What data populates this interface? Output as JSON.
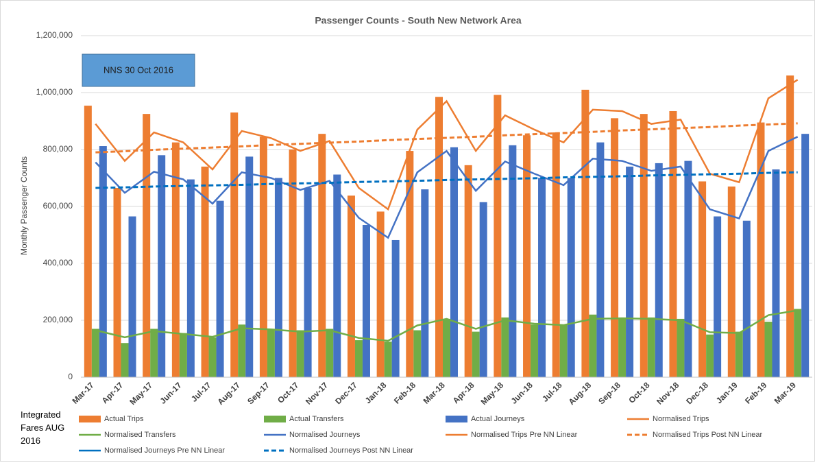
{
  "chart_data": {
    "type": "bar",
    "title": "Passenger Counts - South New Network Area",
    "y_label": "Monthly Passenger Counts",
    "annotation": "NNS 30 Oct 2016",
    "note": "Integrated Fares AUG 2016",
    "categories": [
      "Mar-17",
      "Apr-17",
      "May-17",
      "Jun-17",
      "Jul-17",
      "Aug-17",
      "Sep-17",
      "Oct-17",
      "Nov-17",
      "Dec-17",
      "Jan-18",
      "Feb-18",
      "Mar-18",
      "Apr-18",
      "May-18",
      "Jun-18",
      "Jul-18",
      "Aug-18",
      "Sep-18",
      "Oct-18",
      "Nov-18",
      "Dec-18",
      "Jan-19",
      "Feb-19",
      "Mar-19"
    ],
    "ylim": [
      0,
      1200000
    ],
    "yticks": [
      0,
      {
        "value": 200000,
        "label": "200,000"
      },
      {
        "value": 400000,
        "label": "400,000"
      },
      {
        "value": 600000,
        "label": "600,000"
      },
      {
        "value": 800000,
        "label": "800,000"
      },
      {
        "value": 1000000,
        "label": "1,000,000"
      },
      {
        "value": 1200000,
        "label": "1,200,000"
      }
    ],
    "grid": true,
    "series": [
      {
        "name": "Actual Trips",
        "color": "#ed7d31",
        "mark": "bar",
        "slot": 0,
        "values": [
          954000,
          665000,
          925000,
          825000,
          740000,
          930000,
          845000,
          800000,
          855000,
          638000,
          582000,
          795000,
          985000,
          745000,
          992000,
          850000,
          860000,
          1010000,
          910000,
          925000,
          935000,
          688000,
          670000,
          895000,
          1060000
        ]
      },
      {
        "name": "Actual Transfers",
        "color": "#70ad47",
        "mark": "bar",
        "slot": 1,
        "values": [
          170000,
          120000,
          170000,
          155000,
          140000,
          185000,
          170000,
          165000,
          170000,
          130000,
          125000,
          165000,
          205000,
          160000,
          210000,
          185000,
          185000,
          220000,
          210000,
          210000,
          205000,
          150000,
          160000,
          195000,
          240000
        ]
      },
      {
        "name": "Actual Journeys",
        "color": "#4472c4",
        "mark": "bar",
        "slot": 2,
        "values": [
          812000,
          565000,
          780000,
          695000,
          620000,
          775000,
          700000,
          665000,
          712000,
          535000,
          482000,
          660000,
          808000,
          615000,
          815000,
          700000,
          700000,
          825000,
          740000,
          752000,
          760000,
          565000,
          550000,
          730000,
          855000
        ]
      },
      {
        "name": "Normalised Trips",
        "color": "#ed7d31",
        "mark": "line",
        "dash": false,
        "values": [
          890000,
          760000,
          860000,
          825000,
          730000,
          865000,
          840000,
          795000,
          830000,
          665000,
          590000,
          870000,
          970000,
          795000,
          920000,
          870000,
          825000,
          940000,
          935000,
          890000,
          905000,
          715000,
          685000,
          980000,
          1045000
        ]
      },
      {
        "name": "Normalised Transfers",
        "color": "#70ad47",
        "mark": "line",
        "dash": false,
        "values": [
          165000,
          140000,
          162000,
          152000,
          142000,
          172000,
          168000,
          160000,
          165000,
          138000,
          128000,
          182000,
          205000,
          170000,
          200000,
          188000,
          183000,
          205000,
          207000,
          205000,
          200000,
          158000,
          155000,
          218000,
          235000
        ]
      },
      {
        "name": "Normalised Journeys",
        "color": "#4472c4",
        "mark": "line",
        "dash": false,
        "values": [
          755000,
          648000,
          722000,
          695000,
          610000,
          720000,
          700000,
          658000,
          690000,
          560000,
          490000,
          720000,
          795000,
          655000,
          758000,
          715000,
          675000,
          768000,
          760000,
          725000,
          740000,
          590000,
          558000,
          795000,
          845000
        ]
      },
      {
        "name": "Normalised Trips Pre NN Linear",
        "color": "#ed7d31",
        "mark": "line",
        "dash": false,
        "values": [
          null,
          null,
          null,
          null,
          null,
          null,
          null,
          null,
          null,
          null,
          null,
          null,
          null,
          null,
          null,
          null,
          null,
          null,
          null,
          null,
          null,
          null,
          null,
          null,
          null
        ]
      },
      {
        "name": "Normalised Trips Post NN Linear",
        "color": "#ed7d31",
        "mark": "line",
        "dash": true,
        "values": [
          790000,
          794000,
          799000,
          803000,
          807000,
          811000,
          816000,
          820000,
          824000,
          828000,
          833000,
          837000,
          841000,
          845000,
          850000,
          854000,
          858000,
          862000,
          867000,
          871000,
          875000,
          879000,
          884000,
          888000,
          892000
        ]
      },
      {
        "name": "Normalised Journeys Pre NN Linear",
        "color": "#0070c0",
        "mark": "line",
        "dash": false,
        "values": [
          null,
          null,
          null,
          null,
          null,
          null,
          null,
          null,
          null,
          null,
          null,
          null,
          null,
          null,
          null,
          null,
          null,
          null,
          null,
          null,
          null,
          null,
          null,
          null,
          null
        ]
      },
      {
        "name": "Normalised Journeys Post NN Linear",
        "color": "#0070c0",
        "mark": "line",
        "dash": true,
        "values": [
          665000,
          667000,
          670000,
          672000,
          674000,
          676000,
          679000,
          681000,
          683000,
          686000,
          688000,
          690000,
          693000,
          695000,
          697000,
          699000,
          702000,
          704000,
          706000,
          709000,
          711000,
          713000,
          715000,
          718000,
          720000
        ]
      }
    ]
  }
}
